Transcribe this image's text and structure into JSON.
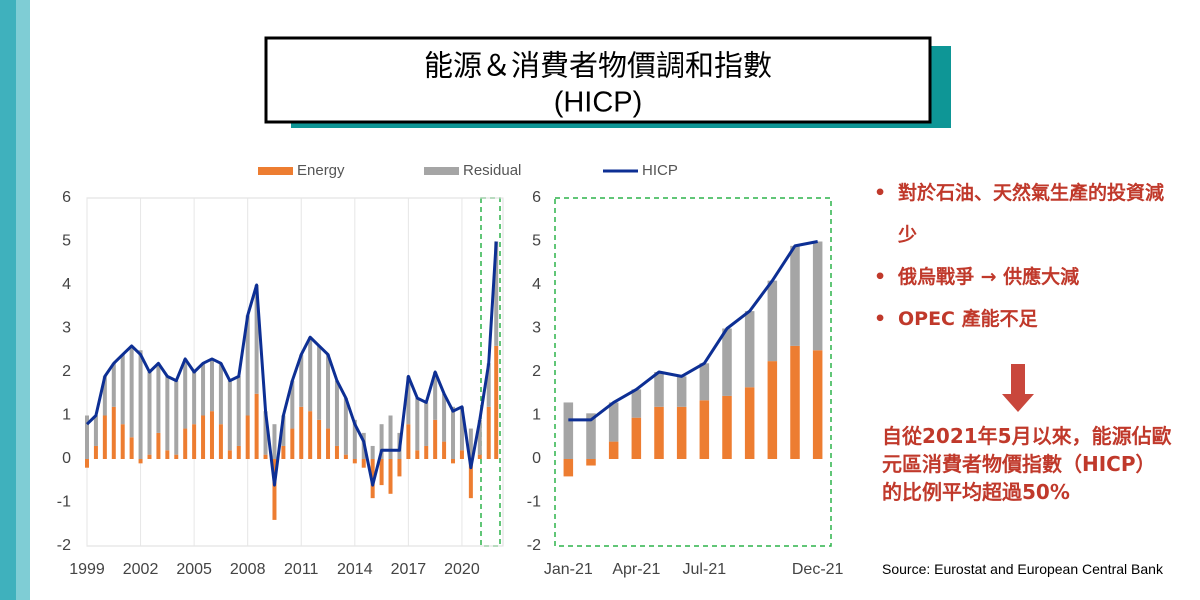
{
  "header": {
    "title": [
      "能源＆消費者物價調和指數",
      "(HICP)"
    ]
  },
  "bullets": [
    "對於石油、天然氣生產的投資減少",
    "俄烏戰爭 → 供應大減",
    "OPEC 產能不足"
  ],
  "note": "自從2021年5月以來，能源佔歐元區消費者物價指數（HICP）的比例平均超過50%",
  "source": "Source: Eurostat and European Central Bank",
  "chart_data": [
    {
      "type": "bar-line",
      "x": [
        1999.0,
        1999.5,
        2000.0,
        2000.5,
        2001.0,
        2001.5,
        2002.0,
        2002.5,
        2003.0,
        2003.5,
        2004.0,
        2004.5,
        2005.0,
        2005.5,
        2006.0,
        2006.5,
        2007.0,
        2007.5,
        2008.0,
        2008.5,
        2009.0,
        2009.5,
        2010.0,
        2010.5,
        2011.0,
        2011.5,
        2012.0,
        2012.5,
        2013.0,
        2013.5,
        2014.0,
        2014.5,
        2015.0,
        2015.5,
        2016.0,
        2016.5,
        2017.0,
        2017.5,
        2018.0,
        2018.5,
        2019.0,
        2019.5,
        2020.0,
        2020.5,
        2021.0,
        2021.5,
        2021.92
      ],
      "series": [
        {
          "name": "Energy",
          "color": "#ed7d31",
          "kind": "bar",
          "values": [
            -0.2,
            0.3,
            1.0,
            1.2,
            0.8,
            0.5,
            -0.1,
            0.1,
            0.6,
            0.2,
            0.1,
            0.7,
            0.8,
            1.0,
            1.1,
            0.8,
            0.2,
            0.3,
            1.0,
            1.5,
            0.1,
            -1.4,
            0.3,
            0.7,
            1.2,
            1.1,
            0.9,
            0.7,
            0.3,
            0.1,
            -0.1,
            -0.2,
            -0.9,
            -0.6,
            -0.8,
            -0.4,
            0.8,
            0.2,
            0.3,
            0.9,
            0.4,
            -0.1,
            0.2,
            -0.9,
            0.1,
            1.2,
            2.6
          ]
        },
        {
          "name": "Residual",
          "color": "#a5a5a5",
          "kind": "bar",
          "values": [
            1.0,
            0.7,
            0.9,
            1.0,
            1.6,
            2.1,
            2.5,
            1.9,
            1.6,
            1.7,
            1.7,
            1.6,
            1.2,
            1.2,
            1.2,
            1.4,
            1.6,
            1.6,
            2.3,
            2.5,
            1.0,
            0.8,
            0.7,
            1.1,
            1.2,
            1.7,
            1.7,
            1.7,
            1.5,
            1.3,
            0.9,
            0.6,
            0.3,
            0.8,
            1.0,
            0.6,
            1.1,
            1.2,
            1.0,
            1.1,
            1.1,
            1.2,
            1.0,
            0.7,
            0.8,
            1.0,
            2.4
          ]
        },
        {
          "name": "HICP",
          "color": "#0d2f94",
          "kind": "line",
          "values": [
            0.8,
            1.0,
            1.9,
            2.2,
            2.4,
            2.6,
            2.4,
            2.0,
            2.2,
            1.9,
            1.8,
            2.3,
            2.0,
            2.2,
            2.3,
            2.2,
            1.8,
            1.9,
            3.3,
            4.0,
            1.1,
            -0.6,
            1.0,
            1.8,
            2.4,
            2.8,
            2.6,
            2.4,
            1.8,
            1.4,
            0.8,
            0.4,
            -0.6,
            0.2,
            0.2,
            0.2,
            1.9,
            1.4,
            1.3,
            2.0,
            1.5,
            1.1,
            1.2,
            -0.2,
            0.9,
            2.2,
            5.0
          ]
        }
      ],
      "xlim": [
        1999,
        2022.3
      ],
      "xticks": [
        1999,
        2002,
        2005,
        2008,
        2011,
        2014,
        2017,
        2020
      ],
      "ylim": [
        -2,
        6
      ],
      "yticks": [
        -2,
        -1,
        0,
        1,
        2,
        3,
        4,
        5,
        6
      ],
      "grid": true
    },
    {
      "type": "bar-line",
      "categories": [
        "Jan-21",
        null,
        null,
        "Apr-21",
        null,
        null,
        "Jul-21",
        null,
        null,
        null,
        null,
        "Dec-21"
      ],
      "series": [
        {
          "color": "#ed7d31",
          "kind": "bar",
          "values": [
            -0.4,
            -0.15,
            0.4,
            0.95,
            1.2,
            1.2,
            1.35,
            1.45,
            1.65,
            2.25,
            2.6,
            2.5
          ]
        },
        {
          "color": "#a5a5a5",
          "kind": "bar",
          "values": [
            1.3,
            1.05,
            0.9,
            0.65,
            0.8,
            0.7,
            0.85,
            1.55,
            1.75,
            1.85,
            2.3,
            2.5
          ]
        },
        {
          "color": "#0d2f94",
          "kind": "line",
          "values": [
            0.9,
            0.9,
            1.3,
            1.6,
            2.0,
            1.9,
            2.2,
            3.0,
            3.4,
            4.1,
            4.9,
            5.0
          ]
        }
      ],
      "ylim": [
        -2,
        6
      ],
      "yticks": [
        -2,
        -1,
        0,
        1,
        2,
        3,
        4,
        5,
        6
      ],
      "grid": false
    }
  ]
}
